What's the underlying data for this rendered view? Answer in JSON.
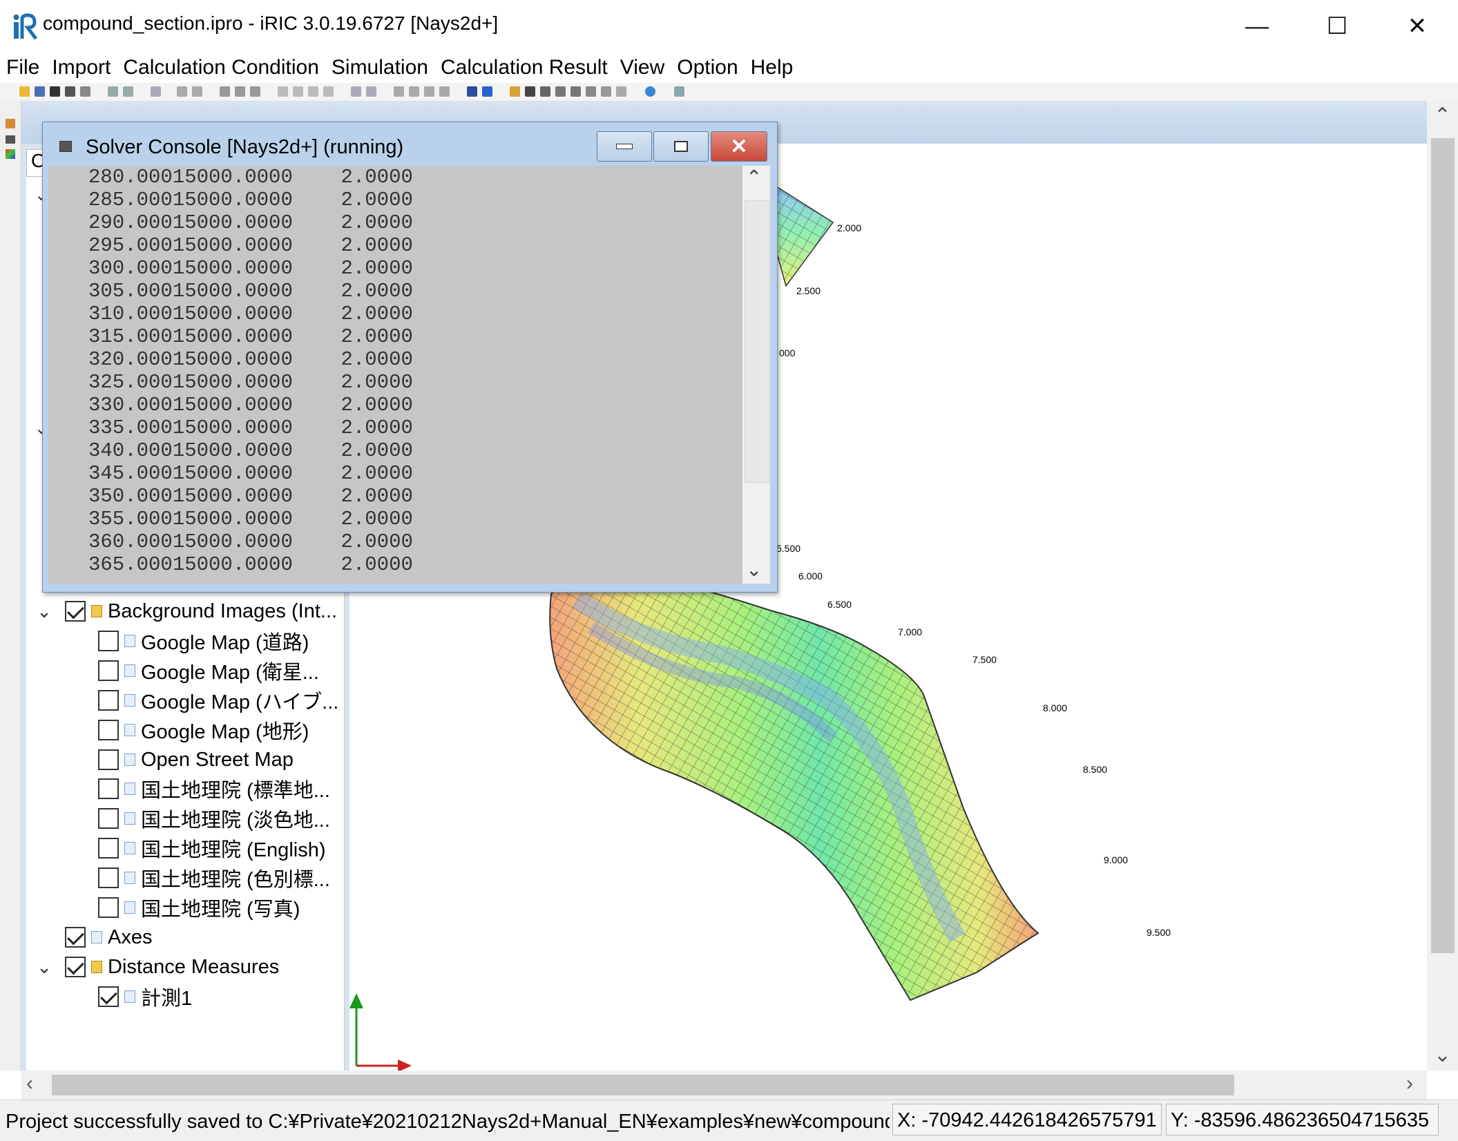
{
  "window": {
    "title": "compound_section.ipro - iRIC 3.0.19.6727 [Nays2d+]",
    "minimize_glyph": "—",
    "maximize_glyph": "☐",
    "close_glyph": "✕"
  },
  "menu": [
    "File",
    "Import",
    "Calculation Condition",
    "Simulation",
    "Calculation Result",
    "View",
    "Option",
    "Help"
  ],
  "subwindow": {
    "tab_fragment": "O"
  },
  "console": {
    "title": "Solver Console [Nays2d+] (running)",
    "lines": [
      "280.00015000.0000    2.0000",
      "285.00015000.0000    2.0000",
      "290.00015000.0000    2.0000",
      "295.00015000.0000    2.0000",
      "300.00015000.0000    2.0000",
      "305.00015000.0000    2.0000",
      "310.00015000.0000    2.0000",
      "315.00015000.0000    2.0000",
      "320.00015000.0000    2.0000",
      "325.00015000.0000    2.0000",
      "330.00015000.0000    2.0000",
      "335.00015000.0000    2.0000",
      "340.00015000.0000    2.0000",
      "345.00015000.0000    2.0000",
      "350.00015000.0000    2.0000",
      "355.00015000.0000    2.0000",
      "360.00015000.0000    2.0000",
      "365.00015000.0000    2.0000"
    ]
  },
  "tree": [
    {
      "label": "Background Images (Int...",
      "checked": true,
      "folder": true,
      "expanded": true,
      "level": 0
    },
    {
      "label": "Google Map (道路)",
      "checked": false,
      "level": 1
    },
    {
      "label": "Google Map (衛星...",
      "checked": false,
      "level": 1
    },
    {
      "label": "Google Map (ハイブ...",
      "checked": false,
      "level": 1
    },
    {
      "label": "Google Map (地形)",
      "checked": false,
      "level": 1
    },
    {
      "label": "Open Street Map",
      "checked": false,
      "level": 1
    },
    {
      "label": "国土地理院 (標準地...",
      "checked": false,
      "level": 1
    },
    {
      "label": "国土地理院 (淡色地...",
      "checked": false,
      "level": 1
    },
    {
      "label": "国土地理院 (English)",
      "checked": false,
      "level": 1
    },
    {
      "label": "国土地理院 (色別標...",
      "checked": false,
      "level": 1
    },
    {
      "label": "国土地理院 (写真)",
      "checked": false,
      "level": 1
    },
    {
      "label": "Axes",
      "checked": true,
      "level": 0
    },
    {
      "label": "Distance Measures",
      "checked": true,
      "folder": true,
      "expanded": true,
      "level": 0
    },
    {
      "label": "計測1",
      "checked": true,
      "level": 1
    }
  ],
  "grid_labels": [
    "2.000",
    "2.500",
    "000",
    "5.500",
    "6.000",
    "6.500",
    "7.000",
    "7.500",
    "8.000",
    "8.500",
    "9.000",
    "9.500"
  ],
  "status": {
    "message": "Project successfully saved to C:¥Private¥20210212Nays2d+Manual_EN¥examples¥new¥compound_section.ipro",
    "x": "X: -70942.442618426575791",
    "y": "Y: -83596.486236504715635"
  },
  "colors": {
    "accent": "#1f6fb2",
    "console_title_bg": "#b9d1ea",
    "close_button": "#c7493a",
    "depth_high": "#f4a27a",
    "depth_mid": "#d7f07a",
    "depth_low": "#6fa6f0"
  }
}
